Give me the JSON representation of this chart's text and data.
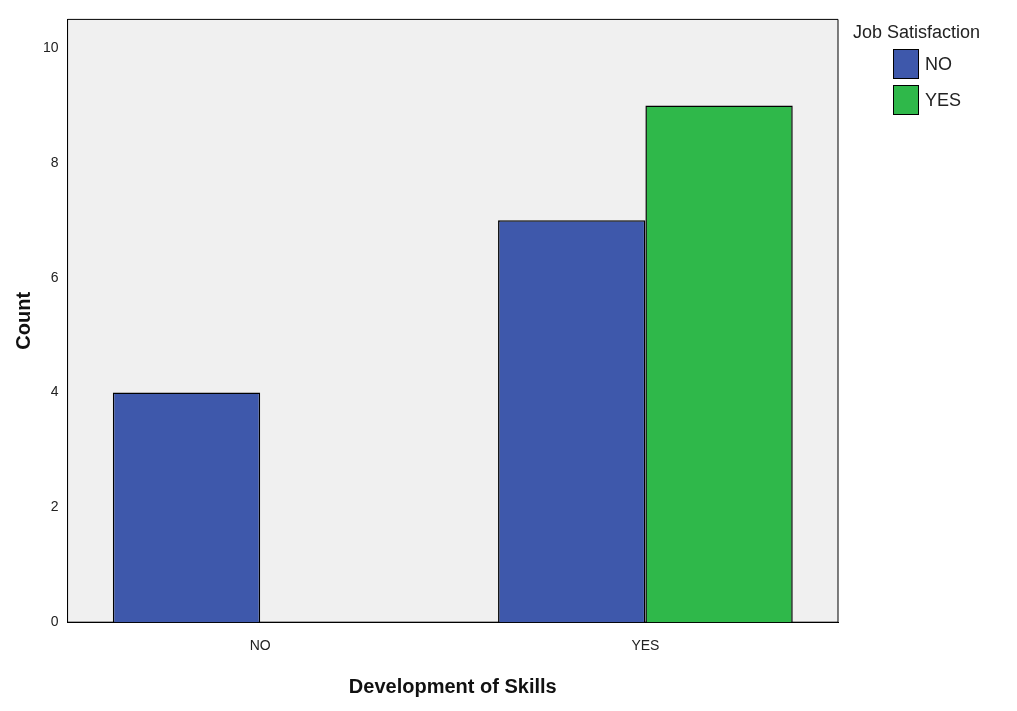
{
  "chart_data": {
    "type": "bar",
    "xlabel": "Development of Skills",
    "ylabel": "Count",
    "legend_title": "Job Satisfaction",
    "categories": [
      "NO",
      "YES"
    ],
    "series": [
      {
        "name": "NO",
        "color": "#3e58ab",
        "values": [
          4,
          7
        ]
      },
      {
        "name": "YES",
        "color": "#2fb84a",
        "values": [
          null,
          9
        ]
      }
    ],
    "ylim": [
      0,
      10.5
    ],
    "yticks": [
      0,
      2,
      4,
      6,
      8,
      10
    ],
    "grid": false,
    "legend": "top right"
  }
}
